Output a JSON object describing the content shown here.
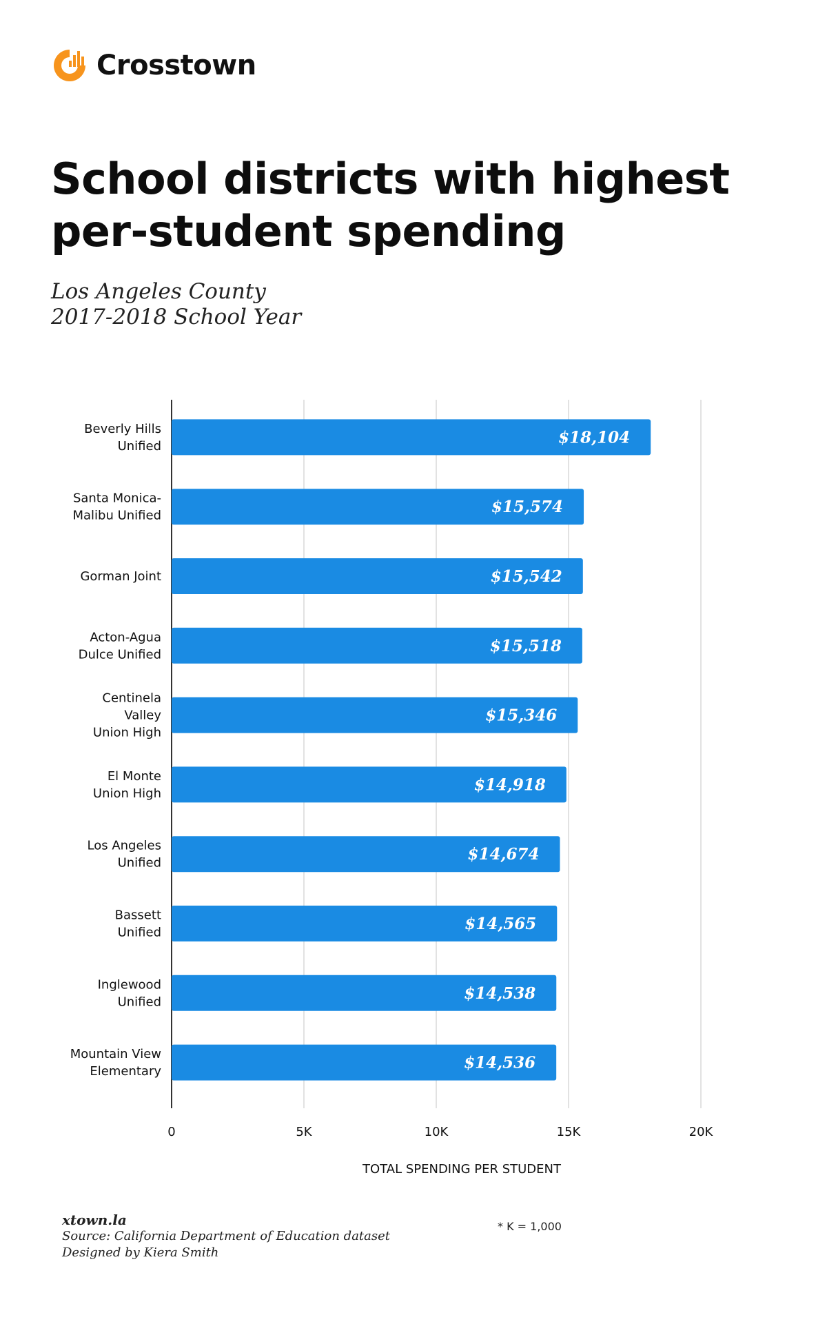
{
  "brand": {
    "name": "Crosstown",
    "logo_icon": "crosstown-logo-icon",
    "color": "#F7941D"
  },
  "title_line1": "School districts with highest",
  "title_line2": "per-student spending",
  "subtitle_line1": "Los Angeles County",
  "subtitle_line2": "2017-2018 School Year",
  "chart_data": {
    "type": "bar",
    "orientation": "horizontal",
    "categories": [
      [
        "Beverly Hills",
        "Unified"
      ],
      [
        "Santa Monica-",
        "Malibu Unified"
      ],
      [
        "Gorman Joint"
      ],
      [
        "Acton-Agua",
        "Dulce Unified"
      ],
      [
        "Centinela",
        "Valley",
        "Union High"
      ],
      [
        "El Monte",
        "Union High"
      ],
      [
        "Los Angeles",
        "Unified"
      ],
      [
        "Bassett",
        "Unified"
      ],
      [
        "Inglewood",
        "Unified"
      ],
      [
        "Mountain View",
        "Elementary"
      ]
    ],
    "values": [
      18104,
      15574,
      15542,
      15518,
      15346,
      14918,
      14674,
      14565,
      14538,
      14536
    ],
    "value_labels": [
      "$18,104",
      "$15,574",
      "$15,542",
      "$15,518",
      "$15,346",
      "$14,918",
      "$14,674",
      "$14,565",
      "$14,538",
      "$14,536"
    ],
    "xlim": [
      0,
      20000
    ],
    "xticks": [
      0,
      5000,
      10000,
      15000,
      20000
    ],
    "xtick_labels": [
      "0",
      "5K",
      "10K",
      "15K",
      "20K"
    ],
    "xlabel": "TOTAL SPENDING PER STUDENT",
    "grid": true,
    "bar_color": "#1A8BE3",
    "value_label_color": "#FFFFFF",
    "gridline_color": "#D9D9D9",
    "axis_color": "#333333"
  },
  "footnote": "* K = 1,000",
  "footer": {
    "site": "xtown.la",
    "source": "Source: California Department of Education dataset",
    "credit": "Designed by Kiera Smith"
  }
}
